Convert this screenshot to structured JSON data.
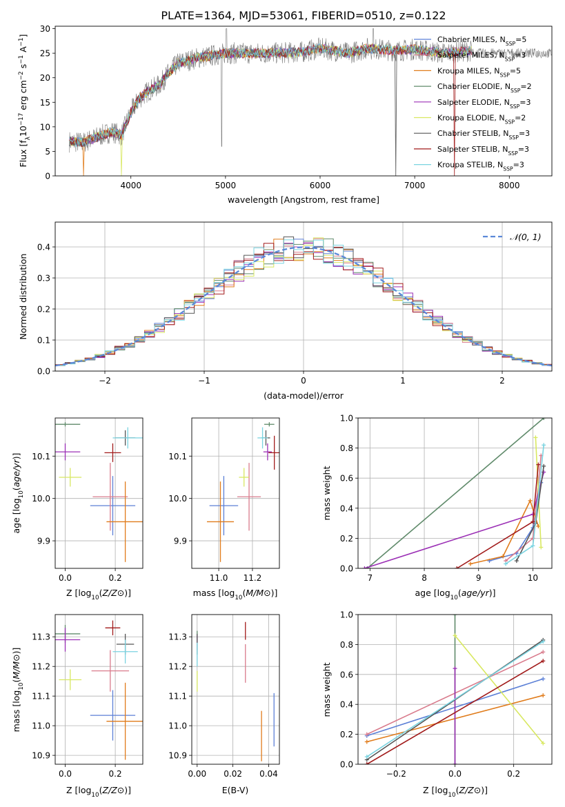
{
  "figure_title": "PLATE=1364, MJD=53061, FIBERID=0510, z=0.122",
  "colors": {
    "Chabrier MILES": "#5b7fd6",
    "Salpeter MILES": "#d97b8c",
    "Kroupa MILES": "#e07b1a",
    "Chabrier ELODIE": "#5f8a6a",
    "Salpeter ELODIE": "#9b2fb5",
    "Kroupa ELODIE": "#d8e860",
    "Chabrier STELIB": "#555555",
    "Salpeter STELIB": "#a11a1a",
    "Kroupa STELIB": "#79d3e0"
  },
  "chart_data": [
    {
      "id": "spectrum",
      "type": "line",
      "xlabel": "wavelength [Angstrom, rest frame]",
      "ylabel_parts": [
        "Flux [f",
        "λ",
        "10",
        "−17",
        " erg cm",
        "−2",
        " s",
        "−1",
        " A",
        "−1",
        "]"
      ],
      "xlim": [
        3200,
        8450
      ],
      "ylim": [
        0,
        30.5
      ],
      "xticks": [
        4000,
        5000,
        6000,
        7000,
        8000
      ],
      "yticks": [
        0,
        5,
        10,
        15,
        20,
        25,
        30
      ],
      "legend_position": "upper right",
      "legend": [
        {
          "name": "Chabrier MILES",
          "nssp": "5"
        },
        {
          "name": "Salpeter MILES",
          "nssp": "3"
        },
        {
          "name": "Kroupa MILES",
          "nssp": "5"
        },
        {
          "name": "Chabrier ELODIE",
          "nssp": "2"
        },
        {
          "name": "Salpeter ELODIE",
          "nssp": "3"
        },
        {
          "name": "Kroupa ELODIE",
          "nssp": "2"
        },
        {
          "name": "Chabrier STELIB",
          "nssp": "3"
        },
        {
          "name": "Salpeter STELIB",
          "nssp": "3"
        },
        {
          "name": "Kroupa STELIB",
          "nssp": "3"
        }
      ],
      "continuum": [
        [
          3350,
          7
        ],
        [
          3500,
          6.8
        ],
        [
          3650,
          8
        ],
        [
          3800,
          9
        ],
        [
          3900,
          8.3
        ],
        [
          4000,
          13
        ],
        [
          4100,
          16
        ],
        [
          4200,
          17.5
        ],
        [
          4300,
          18.5
        ],
        [
          4400,
          21
        ],
        [
          4500,
          23
        ],
        [
          4700,
          24
        ],
        [
          5000,
          25
        ],
        [
          5200,
          25
        ],
        [
          5500,
          25
        ],
        [
          5800,
          25.2
        ],
        [
          6000,
          26
        ],
        [
          6300,
          25
        ],
        [
          6500,
          26
        ],
        [
          6800,
          25.5
        ],
        [
          7000,
          25.8
        ],
        [
          7300,
          25
        ],
        [
          7600,
          25.5
        ]
      ],
      "model_range": [
        3350,
        7600
      ],
      "data_range": [
        3350,
        8450
      ]
    },
    {
      "id": "residual-hist",
      "type": "histogram",
      "xlabel": "(data-model)/error",
      "ylabel": "Normed distribution",
      "xlim": [
        -2.5,
        2.5
      ],
      "ylim": [
        0,
        0.48
      ],
      "xticks": [
        -2,
        -1,
        0,
        1,
        2
      ],
      "yticks": [
        0,
        0.1,
        0.2,
        0.3,
        0.4
      ],
      "bin_width": 0.1,
      "legend": "𝒩(0, 1)",
      "grid": true
    },
    {
      "id": "age-vs-Z",
      "type": "errorbar",
      "xlabel": "Z [log10(Z/Z⊙)]",
      "ylabel": "age  [log10(age/yr)]",
      "xlim": [
        -0.04,
        0.31
      ],
      "ylim": [
        9.835,
        10.19
      ],
      "xticks": [
        0.0,
        0.2
      ],
      "yticks": [
        9.9,
        10.0,
        10.1
      ],
      "points": [
        {
          "s": "Chabrier MILES",
          "x": 0.19,
          "xe": 0.09,
          "y": 9.983,
          "ye": 0.07
        },
        {
          "s": "Salpeter MILES",
          "x": 0.18,
          "xe": 0.07,
          "y": 10.004,
          "ye": 0.08
        },
        {
          "s": "Kroupa MILES",
          "x": 0.24,
          "xe": 0.075,
          "y": 9.945,
          "ye": 0.095
        },
        {
          "s": "Chabrier ELODIE",
          "x": 0.0,
          "xe": 0.06,
          "y": 10.175,
          "ye": 0.005
        },
        {
          "s": "Salpeter ELODIE",
          "x": 0.0,
          "xe": 0.06,
          "y": 10.11,
          "ye": 0.02
        },
        {
          "s": "Kroupa ELODIE",
          "x": 0.02,
          "xe": 0.045,
          "y": 10.05,
          "ye": 0.022
        },
        {
          "s": "Chabrier STELIB",
          "x": 0.24,
          "xe": 0.04,
          "y": 10.143,
          "ye": 0.018
        },
        {
          "s": "Salpeter STELIB",
          "x": 0.19,
          "xe": 0.033,
          "y": 10.108,
          "ye": 0.022
        },
        {
          "s": "Kroupa STELIB",
          "x": 0.25,
          "xe": 0.06,
          "y": 10.143,
          "ye": 0.025
        }
      ]
    },
    {
      "id": "age-vs-mass",
      "type": "errorbar",
      "xlabel": "mass [log10(M/M⊙)]",
      "ylabel": "",
      "xlim": [
        10.84,
        11.36
      ],
      "ylim": [
        9.835,
        10.19
      ],
      "xticks": [
        11.0,
        11.2
      ],
      "yticks": [
        9.9,
        10.0,
        10.1
      ],
      "points": [
        {
          "s": "Chabrier MILES",
          "x": 11.03,
          "xe": 0.085,
          "y": 9.983,
          "ye": 0.07
        },
        {
          "s": "Salpeter MILES",
          "x": 11.18,
          "xe": 0.07,
          "y": 10.004,
          "ye": 0.08
        },
        {
          "s": "Kroupa MILES",
          "x": 11.01,
          "xe": 0.08,
          "y": 9.945,
          "ye": 0.095
        },
        {
          "s": "Chabrier ELODIE",
          "x": 11.3,
          "xe": 0.03,
          "y": 10.175,
          "ye": 0.005
        },
        {
          "s": "Salpeter ELODIE",
          "x": 11.29,
          "xe": 0.025,
          "y": 10.11,
          "ye": 0.02
        },
        {
          "s": "Kroupa ELODIE",
          "x": 11.15,
          "xe": 0.03,
          "y": 10.05,
          "ye": 0.022
        },
        {
          "s": "Chabrier STELIB",
          "x": 11.28,
          "xe": 0.025,
          "y": 10.143,
          "ye": 0.018
        },
        {
          "s": "Salpeter STELIB",
          "x": 11.33,
          "xe": 0.035,
          "y": 10.108,
          "ye": 0.04
        },
        {
          "s": "Kroupa STELIB",
          "x": 11.26,
          "xe": 0.03,
          "y": 10.143,
          "ye": 0.025
        }
      ]
    },
    {
      "id": "mass-weight-vs-age",
      "type": "line",
      "xlabel": "age  [log10(age/yr)]",
      "ylabel": "mass weight",
      "xlim": [
        6.78,
        10.35
      ],
      "ylim": [
        0,
        1
      ],
      "xticks": [
        7,
        8,
        9,
        10
      ],
      "yticks": [
        0.0,
        0.2,
        0.4,
        0.6,
        0.8,
        1.0
      ],
      "grid": true,
      "series": [
        {
          "s": "Chabrier MILES",
          "x": [
            9.2,
            9.7,
            10.0,
            10.15
          ],
          "y": [
            0.05,
            0.1,
            0.27,
            0.57
          ]
        },
        {
          "s": "Salpeter MILES",
          "x": [
            9.5,
            10.0,
            10.15
          ],
          "y": [
            0.05,
            0.2,
            0.75
          ]
        },
        {
          "s": "Kroupa MILES",
          "x": [
            8.85,
            9.45,
            9.95,
            10.1
          ],
          "y": [
            0.03,
            0.08,
            0.45,
            0.28
          ]
        },
        {
          "s": "Chabrier ELODIE",
          "x": [
            6.95,
            10.2
          ],
          "y": [
            0.0,
            1.0
          ]
        },
        {
          "s": "Salpeter ELODIE",
          "x": [
            6.9,
            10.0,
            10.2
          ],
          "y": [
            0.0,
            0.36,
            0.64
          ]
        },
        {
          "s": "Kroupa ELODIE",
          "x": [
            10.05,
            10.15
          ],
          "y": [
            0.87,
            0.14
          ]
        },
        {
          "s": "Chabrier STELIB",
          "x": [
            9.7,
            10.05,
            10.2
          ],
          "y": [
            0.05,
            0.3,
            0.68
          ]
        },
        {
          "s": "Salpeter STELIB",
          "x": [
            8.6,
            10.0,
            10.1
          ],
          "y": [
            0.0,
            0.31,
            0.69
          ]
        },
        {
          "s": "Kroupa STELIB",
          "x": [
            9.5,
            10.0,
            10.2
          ],
          "y": [
            0.03,
            0.15,
            0.82
          ]
        }
      ]
    },
    {
      "id": "mass-vs-Z",
      "type": "errorbar",
      "xlabel": "Z [log10(Z/Z⊙)]",
      "ylabel": "mass [log10(M/M⊙)]",
      "xlim": [
        -0.04,
        0.31
      ],
      "ylim": [
        10.87,
        11.375
      ],
      "xticks": [
        0.0,
        0.2
      ],
      "yticks": [
        10.9,
        11.0,
        11.1,
        11.2,
        11.3
      ],
      "points": [
        {
          "s": "Chabrier MILES",
          "x": 0.19,
          "xe": 0.09,
          "y": 11.035,
          "ye": 0.085
        },
        {
          "s": "Salpeter MILES",
          "x": 0.18,
          "xe": 0.075,
          "y": 11.185,
          "ye": 0.07
        },
        {
          "s": "Kroupa MILES",
          "x": 0.24,
          "xe": 0.075,
          "y": 11.015,
          "ye": 0.13
        },
        {
          "s": "Chabrier ELODIE",
          "x": 0.0,
          "xe": 0.06,
          "y": 11.31,
          "ye": 0.03
        },
        {
          "s": "Salpeter ELODIE",
          "x": 0.0,
          "xe": 0.06,
          "y": 11.29,
          "ye": 0.04
        },
        {
          "s": "Kroupa ELODIE",
          "x": 0.02,
          "xe": 0.045,
          "y": 11.155,
          "ye": 0.035
        },
        {
          "s": "Chabrier STELIB",
          "x": 0.24,
          "xe": 0.035,
          "y": 11.275,
          "ye": 0.035
        },
        {
          "s": "Salpeter STELIB",
          "x": 0.19,
          "xe": 0.03,
          "y": 11.33,
          "ye": 0.025
        },
        {
          "s": "Kroupa STELIB",
          "x": 0.24,
          "xe": 0.05,
          "y": 11.25,
          "ye": 0.04
        }
      ]
    },
    {
      "id": "mass-vs-EBV",
      "type": "errorbar",
      "xlabel": "E(B-V)",
      "ylabel": "",
      "xlim": [
        -0.003,
        0.046
      ],
      "ylim": [
        10.87,
        11.375
      ],
      "xticks": [
        0.0,
        0.02,
        0.04
      ],
      "yticks": [
        10.9,
        11.0,
        11.1,
        11.2,
        11.3
      ],
      "points": [
        {
          "s": "Chabrier MILES",
          "x": 0.043,
          "xe": 0,
          "y": 11.02,
          "ye": 0.09
        },
        {
          "s": "Salpeter MILES",
          "x": 0.027,
          "xe": 0,
          "y": 11.21,
          "ye": 0.065
        },
        {
          "s": "Kroupa MILES",
          "x": 0.036,
          "xe": 0,
          "y": 10.965,
          "ye": 0.085
        },
        {
          "s": "Chabrier ELODIE",
          "x": 0.0,
          "xe": 0,
          "y": 11.29,
          "ye": 0.03
        },
        {
          "s": "Salpeter ELODIE",
          "x": 0.0,
          "xe": 0,
          "y": 11.28,
          "ye": 0.025
        },
        {
          "s": "Kroupa ELODIE",
          "x": 0.0,
          "xe": 0,
          "y": 11.15,
          "ye": 0.035
        },
        {
          "s": "Chabrier STELIB",
          "x": 0.0,
          "xe": 0,
          "y": 11.275,
          "ye": 0.035
        },
        {
          "s": "Salpeter STELIB",
          "x": 0.027,
          "xe": 0,
          "y": 11.32,
          "ye": 0.03
        },
        {
          "s": "Kroupa STELIB",
          "x": 0.0,
          "xe": 0,
          "y": 11.24,
          "ye": 0.04
        }
      ]
    },
    {
      "id": "mass-weight-vs-Z",
      "type": "line",
      "xlabel": "Z [log10(Z/Z⊙)]",
      "ylabel": "mass weight",
      "xlim": [
        -0.33,
        0.33
      ],
      "ylim": [
        0,
        1
      ],
      "xticks": [
        -0.2,
        0.0,
        0.2
      ],
      "yticks": [
        0.0,
        0.2,
        0.4,
        0.6,
        0.8,
        1.0
      ],
      "grid": true,
      "series": [
        {
          "s": "Chabrier MILES",
          "x": [
            -0.3,
            0.3
          ],
          "y": [
            0.19,
            0.57
          ]
        },
        {
          "s": "Salpeter MILES",
          "x": [
            -0.3,
            0.3
          ],
          "y": [
            0.2,
            0.75
          ]
        },
        {
          "s": "Kroupa MILES",
          "x": [
            -0.3,
            0.3
          ],
          "y": [
            0.15,
            0.46
          ]
        },
        {
          "s": "Chabrier ELODIE",
          "x": [
            0.0,
            0.0
          ],
          "y": [
            0.0,
            1.0
          ]
        },
        {
          "s": "Salpeter ELODIE",
          "x": [
            0.0,
            0.0
          ],
          "y": [
            0.0,
            0.64
          ]
        },
        {
          "s": "Kroupa ELODIE",
          "x": [
            0.0,
            0.3
          ],
          "y": [
            0.86,
            0.14
          ]
        },
        {
          "s": "Chabrier STELIB",
          "x": [
            -0.3,
            0.3
          ],
          "y": [
            0.03,
            0.83
          ]
        },
        {
          "s": "Salpeter STELIB",
          "x": [
            -0.3,
            0.3
          ],
          "y": [
            0.0,
            0.69
          ]
        },
        {
          "s": "Kroupa STELIB",
          "x": [
            -0.3,
            0.3
          ],
          "y": [
            0.05,
            0.82
          ]
        }
      ]
    }
  ]
}
